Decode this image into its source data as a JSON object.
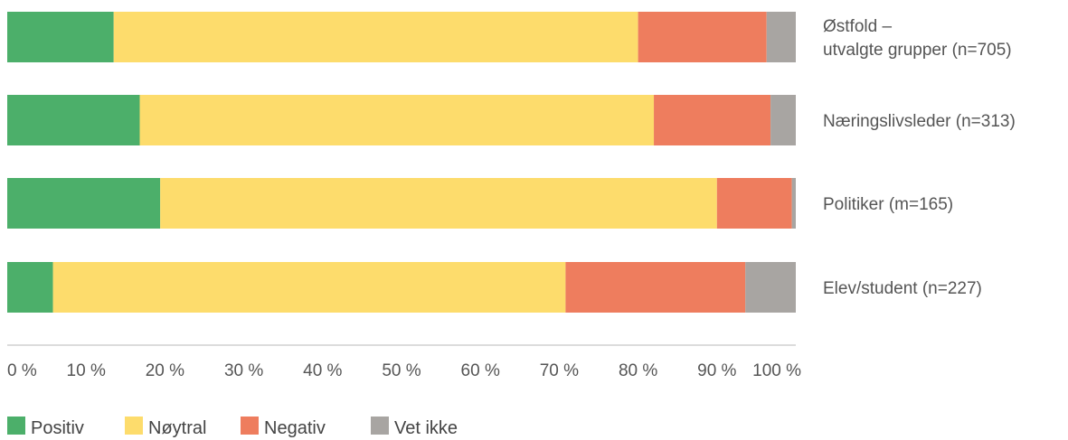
{
  "chart_data": {
    "type": "bar",
    "orientation": "horizontal",
    "stacked": true,
    "categories": [
      [
        "Østfold –",
        "utvalgte grupper (n=705)"
      ],
      [
        "Næringslivsleder (n=313)"
      ],
      [
        "Politiker (m=165)"
      ],
      [
        "Elev/student (n=227)"
      ]
    ],
    "series": [
      {
        "name": "Positiv",
        "color": "#4caf6a",
        "values": [
          13.5,
          16.8,
          19.4,
          5.8
        ]
      },
      {
        "name": "Nøytral",
        "color": "#fddc6c",
        "values": [
          66.5,
          65.2,
          70.6,
          65.0
        ]
      },
      {
        "name": "Negativ",
        "color": "#ee7d5e",
        "values": [
          16.3,
          14.8,
          9.5,
          22.8
        ]
      },
      {
        "name": "Vet ikke",
        "color": "#a8a5a2",
        "values": [
          3.7,
          3.2,
          0.5,
          6.4
        ]
      }
    ],
    "xticks": [
      "0 %",
      "10 %",
      "20 %",
      "30 %",
      "40 %",
      "50 %",
      "60 %",
      "70 %",
      "80 %",
      "90 %",
      "100 %"
    ],
    "xlim": [
      0,
      100
    ],
    "title": "",
    "xlabel": "",
    "ylabel": "",
    "legend_position": "bottom-left",
    "grid": false
  }
}
